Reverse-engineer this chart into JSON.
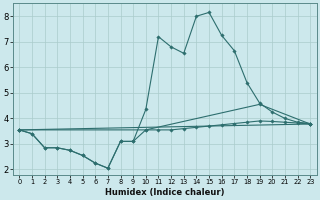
{
  "title": "",
  "xlabel": "Humidex (Indice chaleur)",
  "bg_color": "#cce8ec",
  "grid_color": "#aacccc",
  "line_color": "#2d6e6e",
  "xlim": [
    -0.5,
    23.5
  ],
  "ylim": [
    1.8,
    8.5
  ],
  "xticks": [
    0,
    1,
    2,
    3,
    4,
    5,
    6,
    7,
    8,
    9,
    10,
    11,
    12,
    13,
    14,
    15,
    16,
    17,
    18,
    19,
    20,
    21,
    22,
    23
  ],
  "yticks": [
    2,
    3,
    4,
    5,
    6,
    7,
    8
  ],
  "line1_x": [
    0,
    1,
    2,
    3,
    4,
    5,
    6,
    7,
    8,
    9,
    10,
    11,
    12,
    13,
    14,
    15,
    16,
    17,
    18,
    19,
    20,
    21,
    22,
    23
  ],
  "line1_y": [
    3.55,
    3.4,
    2.85,
    2.85,
    2.75,
    2.55,
    2.25,
    2.05,
    3.1,
    3.1,
    4.35,
    7.2,
    6.8,
    6.55,
    8.0,
    8.15,
    7.25,
    6.65,
    5.4,
    4.6,
    4.25,
    4.0,
    3.85,
    3.8
  ],
  "line2_x": [
    0,
    1,
    2,
    3,
    4,
    5,
    6,
    7,
    8,
    9,
    10,
    11,
    12,
    13,
    14,
    15,
    16,
    17,
    18,
    19,
    20,
    21,
    22,
    23
  ],
  "line2_y": [
    3.55,
    3.4,
    2.85,
    2.85,
    2.75,
    2.55,
    2.25,
    2.05,
    3.1,
    3.1,
    3.55,
    3.55,
    3.55,
    3.6,
    3.65,
    3.7,
    3.75,
    3.8,
    3.85,
    3.9,
    3.88,
    3.85,
    3.82,
    3.78
  ],
  "line3_x": [
    0,
    23
  ],
  "line3_y": [
    3.55,
    3.78
  ],
  "line4_x": [
    0,
    10,
    19,
    23
  ],
  "line4_y": [
    3.55,
    3.55,
    4.55,
    3.78
  ],
  "tick_fontsize": 5.5,
  "xlabel_fontsize": 6.0
}
